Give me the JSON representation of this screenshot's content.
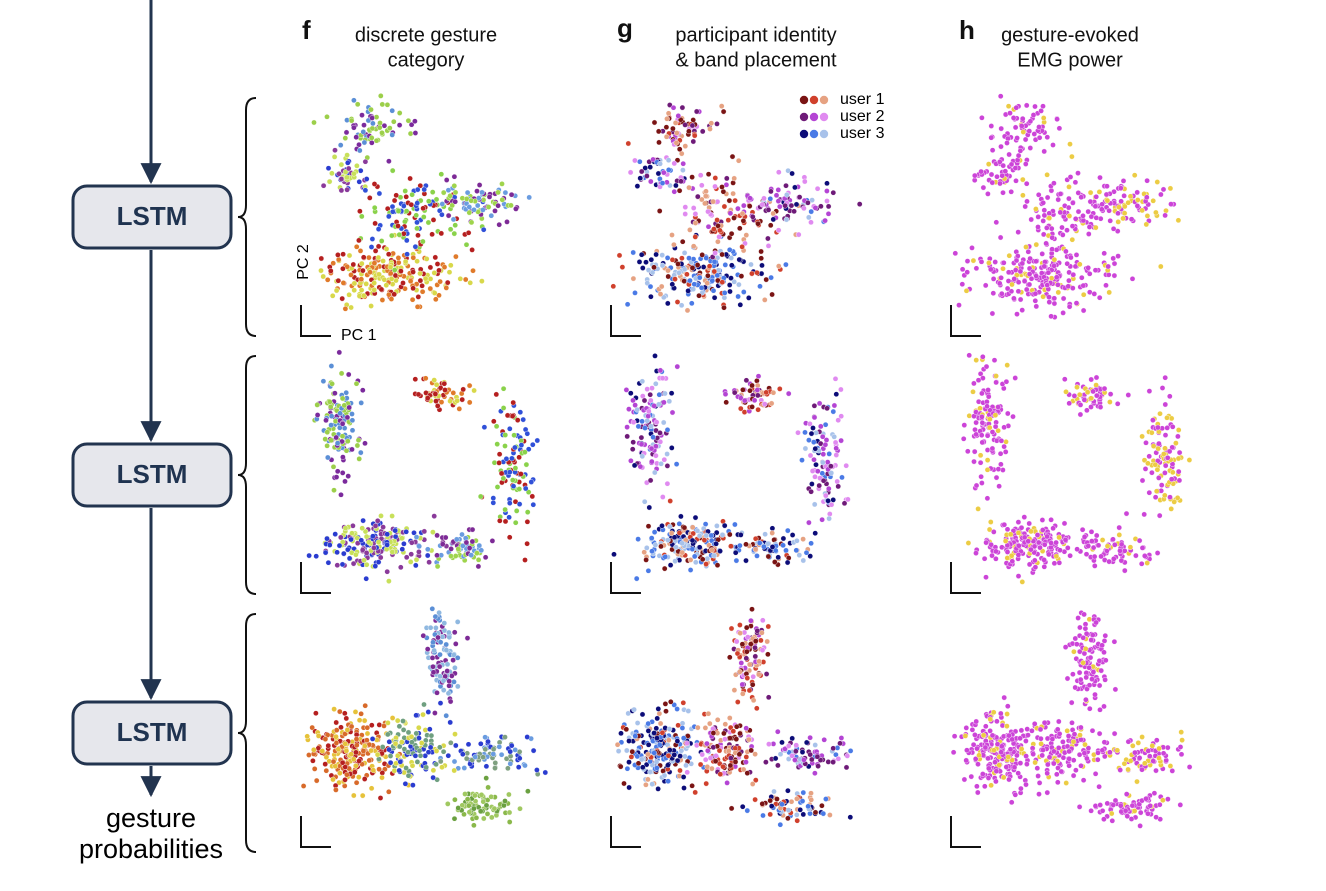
{
  "pipeline": {
    "blocks": [
      "LSTM",
      "LSTM",
      "LSTM"
    ],
    "output": [
      "gesture",
      "probabilities"
    ]
  },
  "panels": [
    {
      "letter": "f",
      "title": [
        "discrete  gesture",
        "category"
      ]
    },
    {
      "letter": "g",
      "title": [
        "participant  identity",
        "&  band  placement"
      ]
    },
    {
      "letter": "h",
      "title": [
        "gesture-evoked",
        "EMG  power"
      ]
    }
  ],
  "axis_labels": {
    "x": "PC 1",
    "y": "PC 2"
  },
  "legend": [
    {
      "name": "user 1",
      "colors": [
        "#7a1414",
        "#d0402c",
        "#e6a282"
      ]
    },
    {
      "name": "user 2",
      "colors": [
        "#6e1a78",
        "#b444d4",
        "#e08af0"
      ]
    },
    {
      "name": "user 3",
      "colors": [
        "#0c0c78",
        "#4a7ae6",
        "#a8c2ea"
      ]
    }
  ]
}
